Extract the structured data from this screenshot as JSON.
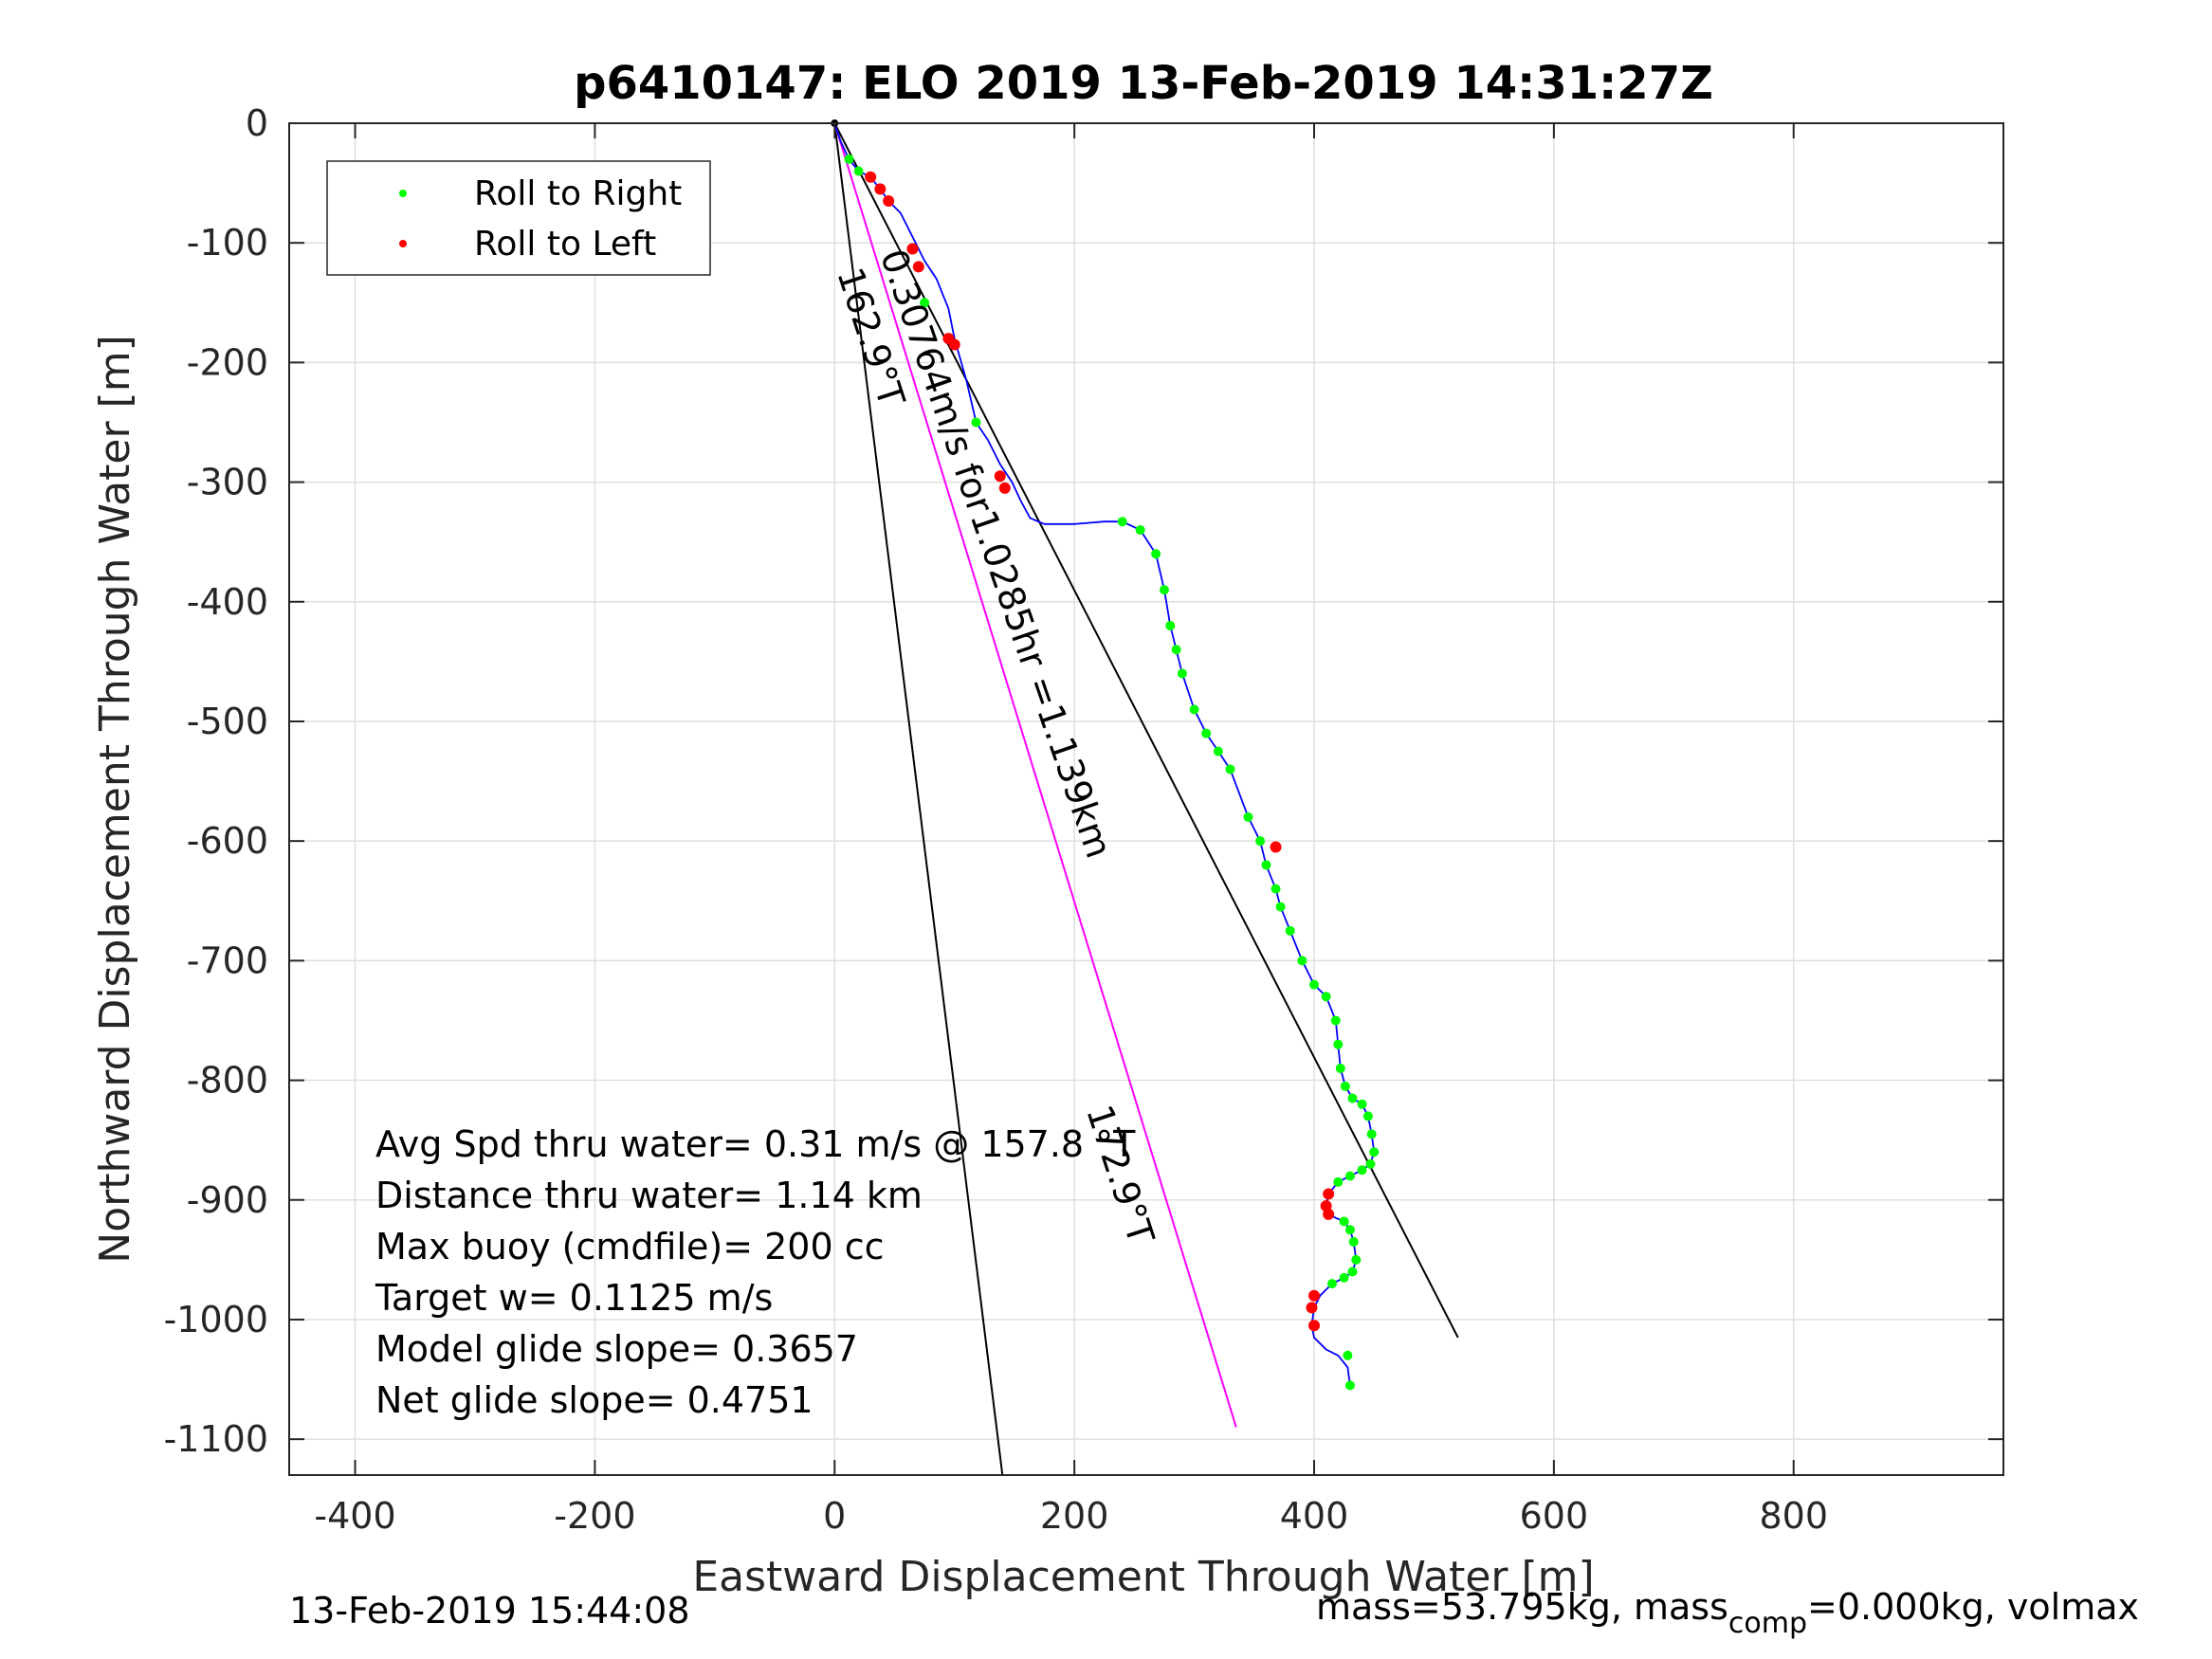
{
  "chart_data": {
    "type": "line",
    "title": "p6410147: ELO 2019 13-Feb-2019 14:31:27Z",
    "xlabel": "Eastward Displacement Through Water [m]",
    "ylabel": "Northward Displacement Through Water [m]",
    "xlim": [
      -455,
      975
    ],
    "ylim": [
      -1130,
      0
    ],
    "xticks": [
      -400,
      -200,
      0,
      200,
      400,
      600,
      800
    ],
    "yticks": [
      0,
      -100,
      -200,
      -300,
      -400,
      -500,
      -600,
      -700,
      -800,
      -900,
      -1000,
      -1100
    ],
    "xtick_labels": [
      "-400",
      "-200",
      "0",
      "200",
      "400",
      "600",
      "800"
    ],
    "ytick_labels": [
      "0",
      "-100",
      "-200",
      "-300",
      "-400",
      "-500",
      "-600",
      "-700",
      "-800",
      "-900",
      "-1000",
      "-1100"
    ],
    "grid": true,
    "legend_position": "top-left",
    "legend": [
      {
        "label": "Roll to Right",
        "color": "#00ff00"
      },
      {
        "label": "Roll to Left",
        "color": "#ff0000"
      }
    ],
    "track": {
      "color": "#0000ff",
      "x": [
        0,
        5,
        12,
        20,
        30,
        38,
        45,
        55,
        65,
        75,
        85,
        95,
        100,
        110,
        118,
        128,
        138,
        148,
        155,
        163,
        175,
        200,
        225,
        240,
        255,
        268,
        275,
        280,
        285,
        290,
        300,
        310,
        320,
        330,
        345,
        355,
        360,
        368,
        372,
        380,
        390,
        400,
        410,
        418,
        420,
        422,
        426,
        432,
        440,
        445,
        448,
        450,
        447,
        440,
        430,
        420,
        412,
        410,
        412,
        418,
        425,
        430,
        433,
        435,
        432,
        425,
        415,
        405,
        400,
        398,
        400,
        410,
        420,
        428,
        430
      ],
      "y": [
        0,
        -15,
        -30,
        -40,
        -45,
        -55,
        -65,
        -75,
        -95,
        -115,
        -130,
        -155,
        -180,
        -215,
        -250,
        -265,
        -285,
        -300,
        -315,
        -330,
        -335,
        -335,
        -333,
        -333,
        -340,
        -360,
        -390,
        -420,
        -440,
        -460,
        -490,
        -510,
        -525,
        -540,
        -580,
        -600,
        -620,
        -640,
        -655,
        -675,
        -700,
        -720,
        -730,
        -750,
        -770,
        -790,
        -805,
        -815,
        -820,
        -830,
        -845,
        -860,
        -870,
        -875,
        -880,
        -885,
        -895,
        -905,
        -912,
        -915,
        -918,
        -925,
        -935,
        -950,
        -960,
        -965,
        -970,
        -980,
        -990,
        -1005,
        -1015,
        -1025,
        -1030,
        -1040,
        -1055
      ]
    },
    "roll_right_x": [
      12,
      20,
      75,
      118,
      240,
      255,
      268,
      275,
      280,
      285,
      290,
      300,
      310,
      320,
      330,
      345,
      355,
      360,
      368,
      372,
      380,
      390,
      400,
      410,
      418,
      420,
      422,
      426,
      432,
      440,
      445,
      448,
      450,
      447,
      440,
      430,
      420,
      425,
      430,
      433,
      435,
      432,
      425,
      415,
      428,
      430
    ],
    "roll_right_y": [
      -30,
      -40,
      -150,
      -250,
      -333,
      -340,
      -360,
      -390,
      -420,
      -440,
      -460,
      -490,
      -510,
      -525,
      -540,
      -580,
      -600,
      -620,
      -640,
      -655,
      -675,
      -700,
      -720,
      -730,
      -750,
      -770,
      -790,
      -805,
      -815,
      -820,
      -830,
      -845,
      -860,
      -870,
      -875,
      -880,
      -885,
      -918,
      -925,
      -935,
      -950,
      -960,
      -965,
      -970,
      -1030,
      -1055
    ],
    "roll_left_x": [
      30,
      38,
      45,
      65,
      70,
      95,
      100,
      138,
      142,
      368,
      412,
      410,
      412,
      400,
      398,
      400
    ],
    "roll_left_y": [
      -45,
      -55,
      -65,
      -105,
      -120,
      -180,
      -185,
      -295,
      -305,
      -605,
      -895,
      -905,
      -912,
      -980,
      -990,
      -1005
    ],
    "lines": [
      {
        "name": "162.9°T",
        "color": "#000000",
        "x": [
          0,
          140
        ],
        "y": [
          0,
          -1130
        ]
      },
      {
        "name": "157.8°T",
        "color": "#000000",
        "x": [
          0,
          520
        ],
        "y": [
          0,
          -1015
        ]
      },
      {
        "name": "172.9°T",
        "color": "#ff00ff",
        "x": [
          0,
          335
        ],
        "y": [
          0,
          -1090
        ]
      }
    ],
    "line_labels": [
      {
        "text": "162.9°T",
        "x": 2,
        "y": -125,
        "angle": 72
      },
      {
        "text": "0.30764m/s for1.0285hr =1.139km",
        "x": 38,
        "y": -110,
        "angle": 71
      },
      {
        "text": "172.9°T",
        "x": 210,
        "y": -825,
        "angle": 72
      }
    ],
    "annotations": [
      "Avg Spd thru water=  0.31 m/s @ 157.8 °T",
      "Distance thru water=  1.14 km",
      "Max buoy (cmdfile)= 200 cc",
      "Target w= 0.1125 m/s",
      "Model glide slope= 0.3657",
      "Net glide slope= 0.4751"
    ]
  },
  "footer": {
    "timestamp": "13-Feb-2019 15:44:08",
    "mass_prefix": "mass=53.795kg, mass",
    "mass_sub": "comp",
    "mass_suffix": "=0.000kg, volmax"
  }
}
